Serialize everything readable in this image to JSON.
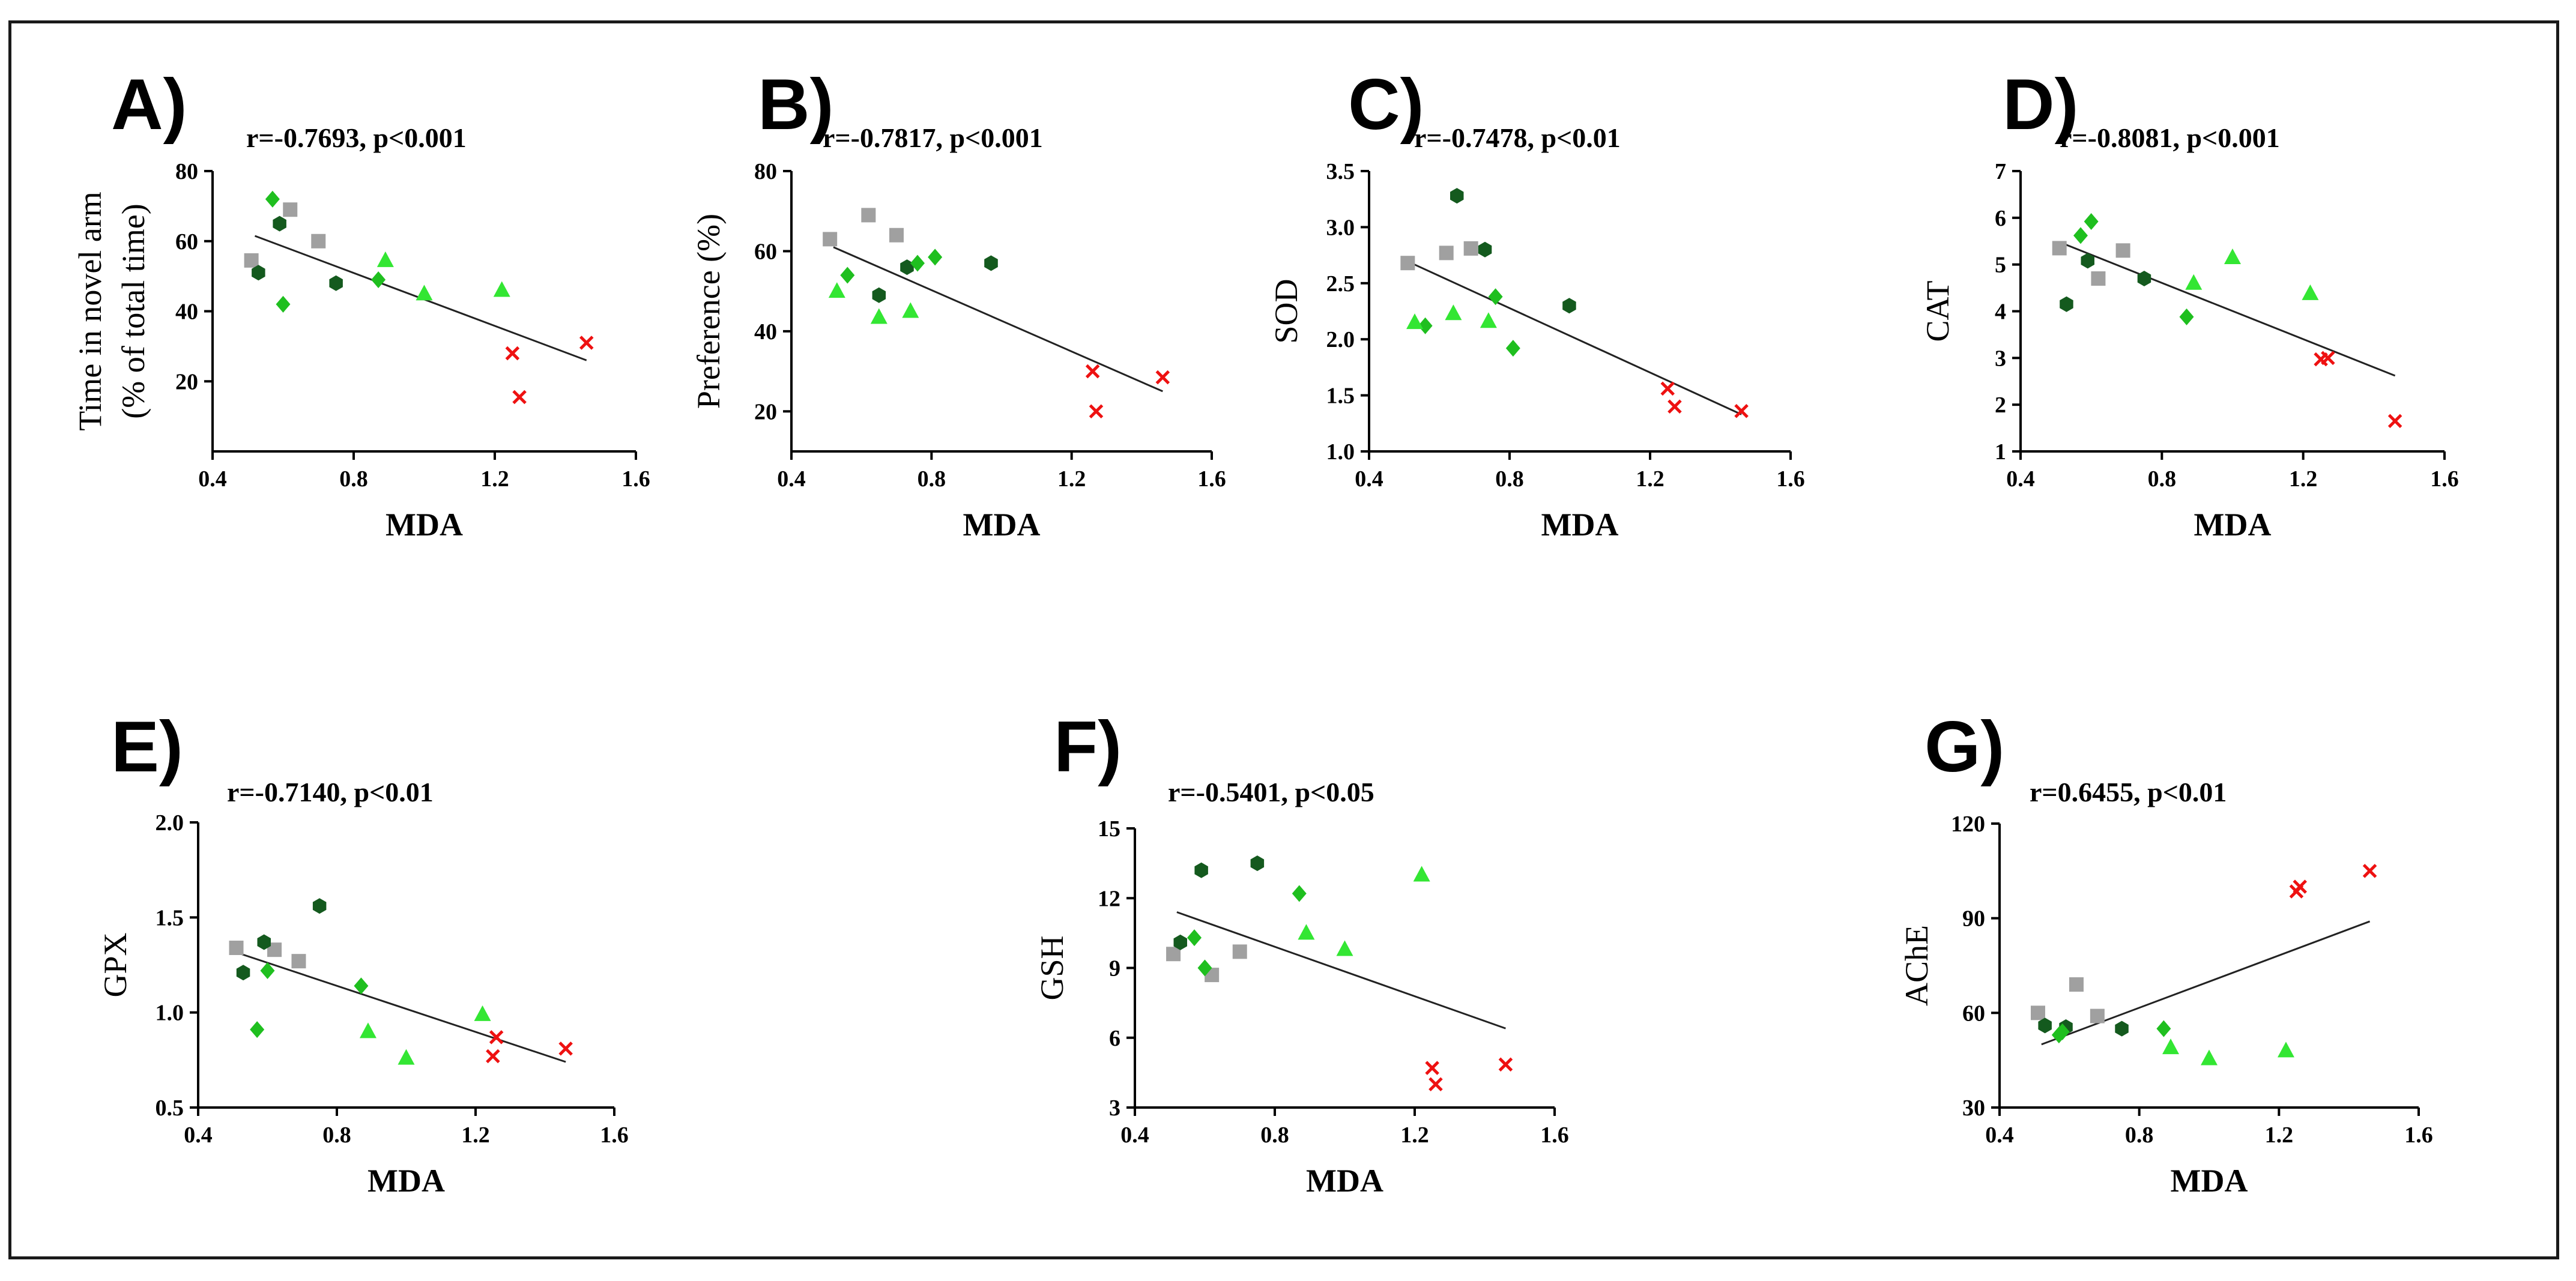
{
  "colors": {
    "grey": "#a0a0a0",
    "dark_green": "#145a1e",
    "mid_green": "#1fbf1f",
    "light_green": "#33e633",
    "red": "#ee1111",
    "axis": "#000000",
    "fit_line": "#222222"
  },
  "groups": [
    {
      "key": "grey",
      "marker": "square"
    },
    {
      "key": "dark_green",
      "marker": "hexagon"
    },
    {
      "key": "mid_green",
      "marker": "diamond"
    },
    {
      "key": "light_green",
      "marker": "triangle"
    },
    {
      "key": "red",
      "marker": "cross"
    }
  ],
  "chart_data": [
    {
      "type": "scatter",
      "panel": "A)",
      "stat": "r=-0.7693, p<0.001",
      "xlabel": "MDA",
      "ylabel": [
        "Time in novel arm",
        "(% of total time)"
      ],
      "xlim": [
        0.4,
        1.6
      ],
      "xticks": [
        "0.4",
        "0.8",
        "1.2",
        "1.6"
      ],
      "ylim": [
        0,
        80
      ],
      "yticks": [
        "20",
        "40",
        "60",
        "80"
      ],
      "fit": [
        [
          0.52,
          61.5
        ],
        [
          1.46,
          26
        ]
      ],
      "points": {
        "grey": [
          [
            0.51,
            54.5
          ],
          [
            0.62,
            69
          ],
          [
            0.7,
            60
          ]
        ],
        "dark_green": [
          [
            0.53,
            51
          ],
          [
            0.59,
            65
          ],
          [
            0.75,
            48
          ]
        ],
        "mid_green": [
          [
            0.57,
            72
          ],
          [
            0.6,
            42
          ],
          [
            0.87,
            49
          ]
        ],
        "light_green": [
          [
            0.89,
            54.5
          ],
          [
            1.0,
            45
          ],
          [
            1.22,
            46
          ]
        ],
        "red": [
          [
            1.25,
            28
          ],
          [
            1.27,
            15.5
          ],
          [
            1.46,
            31
          ]
        ]
      }
    },
    {
      "type": "scatter",
      "panel": "B)",
      "stat": "r=-0.7817, p<0.001",
      "xlabel": "MDA",
      "ylabel": [
        "Preference (%)"
      ],
      "xlim": [
        0.4,
        1.6
      ],
      "xticks": [
        "0.4",
        "0.8",
        "1.2",
        "1.6"
      ],
      "ylim": [
        10,
        80
      ],
      "yticks": [
        "20",
        "40",
        "60",
        "80"
      ],
      "fit": [
        [
          0.52,
          61
        ],
        [
          1.46,
          25
        ]
      ],
      "points": {
        "grey": [
          [
            0.51,
            63
          ],
          [
            0.62,
            69
          ],
          [
            0.7,
            64
          ]
        ],
        "dark_green": [
          [
            0.65,
            49
          ],
          [
            0.73,
            56
          ],
          [
            0.97,
            57
          ]
        ],
        "mid_green": [
          [
            0.56,
            54
          ],
          [
            0.76,
            57
          ],
          [
            0.81,
            58.5
          ]
        ],
        "light_green": [
          [
            0.53,
            50
          ],
          [
            0.65,
            43.5
          ],
          [
            0.74,
            45
          ]
        ],
        "red": [
          [
            1.26,
            30
          ],
          [
            1.27,
            20
          ],
          [
            1.46,
            28.5
          ]
        ]
      }
    },
    {
      "type": "scatter",
      "panel": "C)",
      "stat": "r=-0.7478, p<0.01",
      "xlabel": "MDA",
      "ylabel": [
        "SOD"
      ],
      "xlim": [
        0.4,
        1.6
      ],
      "xticks": [
        "0.4",
        "0.8",
        "1.2",
        "1.6"
      ],
      "ylim": [
        1.0,
        3.5
      ],
      "yticks": [
        "1.0",
        "1.5",
        "2.0",
        "2.5",
        "3.0",
        "3.5"
      ],
      "fit": [
        [
          0.52,
          2.68
        ],
        [
          1.46,
          1.33
        ]
      ],
      "points": {
        "grey": [
          [
            0.51,
            2.68
          ],
          [
            0.62,
            2.77
          ],
          [
            0.69,
            2.81
          ]
        ],
        "dark_green": [
          [
            0.65,
            3.28
          ],
          [
            0.73,
            2.8
          ],
          [
            0.97,
            2.3
          ]
        ],
        "mid_green": [
          [
            0.56,
            2.12
          ],
          [
            0.76,
            2.38
          ],
          [
            0.81,
            1.92
          ]
        ],
        "light_green": [
          [
            0.53,
            2.15
          ],
          [
            0.64,
            2.23
          ],
          [
            0.74,
            2.16
          ]
        ],
        "red": [
          [
            1.25,
            1.56
          ],
          [
            1.27,
            1.4
          ],
          [
            1.46,
            1.36
          ]
        ]
      }
    },
    {
      "type": "scatter",
      "panel": "D)",
      "stat": "r=-0.8081, p<0.001",
      "xlabel": "MDA",
      "ylabel": [
        "CAT"
      ],
      "xlim": [
        0.4,
        1.6
      ],
      "xticks": [
        "0.4",
        "0.8",
        "1.2",
        "1.6"
      ],
      "ylim": [
        1,
        7
      ],
      "yticks": [
        "1",
        "2",
        "3",
        "4",
        "5",
        "6",
        "7"
      ],
      "fit": [
        [
          0.52,
          5.45
        ],
        [
          1.46,
          2.62
        ]
      ],
      "points": {
        "grey": [
          [
            0.51,
            5.35
          ],
          [
            0.62,
            4.7
          ],
          [
            0.69,
            5.3
          ]
        ],
        "dark_green": [
          [
            0.53,
            4.15
          ],
          [
            0.59,
            5.08
          ],
          [
            0.75,
            4.7
          ]
        ],
        "mid_green": [
          [
            0.57,
            5.62
          ],
          [
            0.6,
            5.92
          ],
          [
            0.87,
            3.88
          ]
        ],
        "light_green": [
          [
            0.89,
            4.6
          ],
          [
            1.0,
            5.15
          ],
          [
            1.22,
            4.38
          ]
        ],
        "red": [
          [
            1.25,
            2.97
          ],
          [
            1.27,
            3.0
          ],
          [
            1.46,
            1.65
          ]
        ]
      }
    },
    {
      "type": "scatter",
      "panel": "E)",
      "stat": "r=-0.7140, p<0.01",
      "xlabel": "MDA",
      "ylabel": [
        "GPX"
      ],
      "xlim": [
        0.4,
        1.6
      ],
      "xticks": [
        "0.4",
        "0.8",
        "1.2",
        "1.6"
      ],
      "ylim": [
        0.5,
        2.0
      ],
      "yticks": [
        "0.5",
        "1.0",
        "1.5",
        "2.0"
      ],
      "fit": [
        [
          0.52,
          1.31
        ],
        [
          1.46,
          0.74
        ]
      ],
      "points": {
        "grey": [
          [
            0.51,
            1.34
          ],
          [
            0.62,
            1.33
          ],
          [
            0.69,
            1.27
          ]
        ],
        "dark_green": [
          [
            0.53,
            1.21
          ],
          [
            0.59,
            1.37
          ],
          [
            0.75,
            1.56
          ]
        ],
        "mid_green": [
          [
            0.57,
            0.91
          ],
          [
            0.6,
            1.22
          ],
          [
            0.87,
            1.14
          ]
        ],
        "light_green": [
          [
            0.89,
            0.9
          ],
          [
            1.0,
            0.76
          ],
          [
            1.22,
            0.99
          ]
        ],
        "red": [
          [
            1.25,
            0.77
          ],
          [
            1.26,
            0.87
          ],
          [
            1.46,
            0.81
          ]
        ]
      }
    },
    {
      "type": "scatter",
      "panel": "F)",
      "stat": "r=-0.5401, p<0.05",
      "xlabel": "MDA",
      "ylabel": [
        "GSH"
      ],
      "xlim": [
        0.4,
        1.6
      ],
      "xticks": [
        "0.4",
        "0.8",
        "1.2",
        "1.6"
      ],
      "ylim": [
        3,
        15
      ],
      "yticks": [
        "3",
        "6",
        "9",
        "12",
        "15"
      ],
      "fit": [
        [
          0.52,
          11.4
        ],
        [
          1.46,
          6.4
        ]
      ],
      "points": {
        "grey": [
          [
            0.51,
            9.6
          ],
          [
            0.62,
            8.7
          ],
          [
            0.7,
            9.7
          ]
        ],
        "dark_green": [
          [
            0.53,
            10.1
          ],
          [
            0.59,
            13.2
          ],
          [
            0.75,
            13.5
          ]
        ],
        "mid_green": [
          [
            0.57,
            10.3
          ],
          [
            0.6,
            9.0
          ],
          [
            0.87,
            12.2
          ]
        ],
        "light_green": [
          [
            0.89,
            10.5
          ],
          [
            1.0,
            9.8
          ],
          [
            1.22,
            13.0
          ]
        ],
        "red": [
          [
            1.25,
            4.7
          ],
          [
            1.26,
            4.0
          ],
          [
            1.46,
            4.85
          ]
        ]
      }
    },
    {
      "type": "scatter",
      "panel": "G)",
      "stat": "r=0.6455, p<0.01",
      "xlabel": "MDA",
      "ylabel": [
        "AChE"
      ],
      "xlim": [
        0.4,
        1.6
      ],
      "xticks": [
        "0.4",
        "0.8",
        "1.2",
        "1.6"
      ],
      "ylim": [
        30,
        120
      ],
      "yticks": [
        "30",
        "60",
        "90",
        "120"
      ],
      "fit": [
        [
          0.52,
          50
        ],
        [
          1.46,
          89
        ]
      ],
      "points": {
        "grey": [
          [
            0.51,
            60
          ],
          [
            0.62,
            69
          ],
          [
            0.68,
            59
          ]
        ],
        "dark_green": [
          [
            0.53,
            56
          ],
          [
            0.59,
            55.5
          ],
          [
            0.75,
            55
          ]
        ],
        "mid_green": [
          [
            0.57,
            53
          ],
          [
            0.58,
            54
          ],
          [
            0.87,
            55
          ]
        ],
        "light_green": [
          [
            0.89,
            49
          ],
          [
            1.0,
            45.5
          ],
          [
            1.22,
            48
          ]
        ],
        "red": [
          [
            1.25,
            98.5
          ],
          [
            1.26,
            100
          ],
          [
            1.46,
            105
          ]
        ]
      }
    }
  ]
}
